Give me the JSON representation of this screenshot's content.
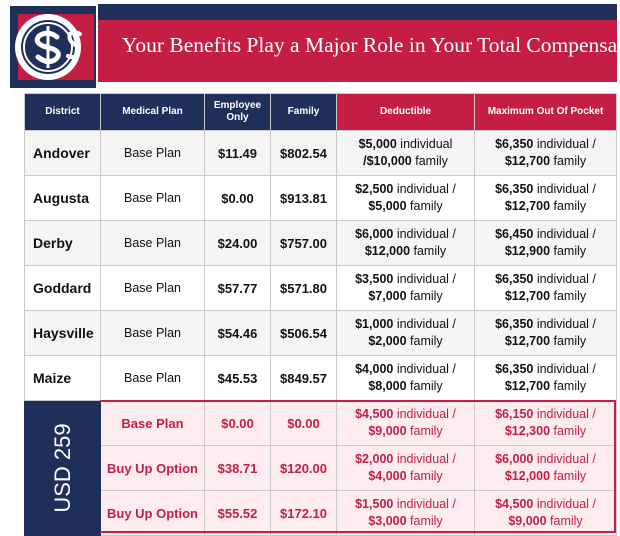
{
  "header": {
    "title": "Your Benefits Play a Major Role in Your Total Compensation",
    "logo_icon": "dollar-coin-icon"
  },
  "colors": {
    "navy": "#1f2f5a",
    "crimson": "#c41e45"
  },
  "table": {
    "columns": [
      "District",
      "Medical Plan",
      "Employee Only",
      "Family",
      "Deductible",
      "Maximum Out Of Pocket"
    ],
    "rows": [
      {
        "district": "Andover",
        "plan": "Base Plan",
        "employee": "$11.49",
        "family": "$802.54",
        "deductible": [
          "$5,000",
          " individual",
          "/$10,000",
          " family"
        ],
        "moop": [
          "$6,350",
          " individual /",
          "$12,700",
          " family"
        ]
      },
      {
        "district": "Augusta",
        "plan": "Base Plan",
        "employee": "$0.00",
        "family": "$913.81",
        "deductible": [
          "$2,500",
          " individual /",
          "$5,000",
          " family"
        ],
        "moop": [
          "$6,350",
          " individual /",
          "$12,700",
          " family"
        ]
      },
      {
        "district": "Derby",
        "plan": "Base Plan",
        "employee": "$24.00",
        "family": "$757.00",
        "deductible": [
          "$6,000",
          " individual /",
          "$12,000",
          " family"
        ],
        "moop": [
          "$6,450",
          " individual /",
          "$12,900",
          " family"
        ]
      },
      {
        "district": "Goddard",
        "plan": "Base Plan",
        "employee": "$57.77",
        "family": "$571.80",
        "deductible": [
          "$3,500",
          " individual /",
          "$7,000",
          " family"
        ],
        "moop": [
          "$6,350",
          " individual /",
          "$12,700",
          " family"
        ]
      },
      {
        "district": "Haysville",
        "plan": "Base Plan",
        "employee": "$54.46",
        "family": "$506.54",
        "deductible": [
          "$1,000",
          " individual /",
          "$2,000",
          " family"
        ],
        "moop": [
          "$6,350",
          " individual /",
          "$12,700",
          " family"
        ]
      },
      {
        "district": "Maize",
        "plan": "Base Plan",
        "employee": "$45.53",
        "family": "$849.57",
        "deductible": [
          "$4,000",
          " individual /",
          "$8,000",
          " family"
        ],
        "moop": [
          "$6,350",
          " individual /",
          "$12,700",
          " family"
        ]
      }
    ],
    "usd": {
      "label": "USD 259",
      "rows": [
        {
          "plan": "Base Plan",
          "employee": "$0.00",
          "family": "$0.00",
          "deductible": [
            "$4,500",
            " individual /",
            "$9,000",
            " family"
          ],
          "moop": [
            "$6,150",
            " individual /",
            "$12,300",
            " family"
          ]
        },
        {
          "plan": "Buy Up Option",
          "employee": "$38.71",
          "family": "$120.00",
          "deductible": [
            "$2,000",
            " individual /",
            "$4,000",
            " family"
          ],
          "moop": [
            "$6,000",
            " individual /",
            "$12,000",
            " family"
          ]
        },
        {
          "plan": "Buy Up Option",
          "employee": "$55.52",
          "family": "$172.10",
          "deductible": [
            "$1,500",
            " individual /",
            "$3,000",
            " family"
          ],
          "moop": [
            "$4,500",
            " individual /",
            "$9,000",
            " family"
          ]
        }
      ]
    }
  }
}
